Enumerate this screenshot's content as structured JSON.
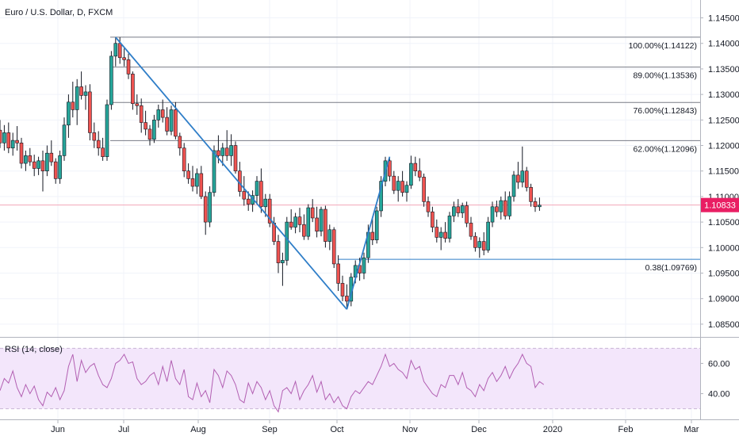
{
  "chart_data": [
    {
      "type": "candlestick",
      "title": "Euro / U.S. Dollar, D, FXCM",
      "x_labels": [
        "Jun",
        "Jul",
        "Aug",
        "Sep",
        "Oct",
        "Nov",
        "Dec",
        "2020",
        "Feb",
        "Mar"
      ],
      "y_ticks": [
        "1.14500",
        "1.14000",
        "1.13500",
        "1.13000",
        "1.12500",
        "1.12000",
        "1.11500",
        "1.11000",
        "1.10500",
        "1.10000",
        "1.09500",
        "1.09000",
        "1.08500"
      ],
      "ylim": [
        1.0825,
        1.1485
      ],
      "last_price": "1.10833",
      "colors": {
        "up": "#26a69a",
        "down": "#ef5350",
        "wick": "#131722",
        "trend": "#2f7ec8",
        "fib": "#787b86",
        "fib_low": "#2f7ec8",
        "price_line": "#f3a6b8",
        "price_tag": "#e91e63"
      },
      "candles": [
        [
          1.123,
          1.125,
          1.1195,
          1.1205
        ],
        [
          1.1205,
          1.124,
          1.119,
          1.1225
        ],
        [
          1.1225,
          1.1245,
          1.1185,
          1.1195
        ],
        [
          1.1195,
          1.1225,
          1.118,
          1.121
        ],
        [
          1.121,
          1.1238,
          1.119,
          1.1205
        ],
        [
          1.1205,
          1.1215,
          1.1155,
          1.1165
        ],
        [
          1.1165,
          1.119,
          1.115,
          1.118
        ],
        [
          1.118,
          1.1195,
          1.116,
          1.1168
        ],
        [
          1.1168,
          1.1182,
          1.114,
          1.1155
        ],
        [
          1.1155,
          1.1178,
          1.1142,
          1.117
        ],
        [
          1.117,
          1.119,
          1.111,
          1.115
        ],
        [
          1.115,
          1.12,
          1.114,
          1.1185
        ],
        [
          1.1185,
          1.121,
          1.116,
          1.1168
        ],
        [
          1.1168,
          1.1175,
          1.1125,
          1.1135
        ],
        [
          1.1135,
          1.119,
          1.1125,
          1.118
        ],
        [
          1.118,
          1.1255,
          1.117,
          1.124
        ],
        [
          1.124,
          1.13,
          1.1215,
          1.1285
        ],
        [
          1.1285,
          1.1325,
          1.1255,
          1.127
        ],
        [
          1.127,
          1.133,
          1.124,
          1.1315
        ],
        [
          1.1315,
          1.1345,
          1.129,
          1.1298
        ],
        [
          1.1298,
          1.1318,
          1.127,
          1.1305
        ],
        [
          1.1305,
          1.132,
          1.121,
          1.1225
        ],
        [
          1.1225,
          1.1245,
          1.1195,
          1.121
        ],
        [
          1.121,
          1.1228,
          1.118,
          1.1195
        ],
        [
          1.1195,
          1.1215,
          1.117,
          1.1178
        ],
        [
          1.1178,
          1.129,
          1.117,
          1.128
        ],
        [
          1.128,
          1.1385,
          1.127,
          1.1375
        ],
        [
          1.1375,
          1.1412,
          1.1355,
          1.14
        ],
        [
          1.14,
          1.1412,
          1.136,
          1.1372
        ],
        [
          1.1372,
          1.139,
          1.1355,
          1.1368
        ],
        [
          1.1368,
          1.138,
          1.133,
          1.134
        ],
        [
          1.134,
          1.1345,
          1.127,
          1.1282
        ],
        [
          1.1282,
          1.13,
          1.126,
          1.1278
        ],
        [
          1.1278,
          1.1292,
          1.1225,
          1.1245
        ],
        [
          1.1245,
          1.1268,
          1.122,
          1.1232
        ],
        [
          1.1232,
          1.124,
          1.12,
          1.1212
        ],
        [
          1.1212,
          1.126,
          1.1205,
          1.125
        ],
        [
          1.125,
          1.128,
          1.1235,
          1.127
        ],
        [
          1.127,
          1.129,
          1.1245,
          1.1255
        ],
        [
          1.1255,
          1.1275,
          1.122,
          1.1228
        ],
        [
          1.1228,
          1.1278,
          1.122,
          1.127
        ],
        [
          1.127,
          1.1285,
          1.1212,
          1.1218
        ],
        [
          1.1218,
          1.1225,
          1.118,
          1.1195
        ],
        [
          1.1195,
          1.1205,
          1.1138,
          1.115
        ],
        [
          1.115,
          1.1165,
          1.1125,
          1.1135
        ],
        [
          1.1135,
          1.116,
          1.111,
          1.112
        ],
        [
          1.112,
          1.1155,
          1.1105,
          1.1145
        ],
        [
          1.1145,
          1.116,
          1.1095,
          1.11
        ],
        [
          1.11,
          1.111,
          1.1025,
          1.105
        ],
        [
          1.105,
          1.112,
          1.104,
          1.1108
        ],
        [
          1.1108,
          1.12,
          1.11,
          1.119
        ],
        [
          1.119,
          1.122,
          1.1165,
          1.118
        ],
        [
          1.118,
          1.1205,
          1.116,
          1.1195
        ],
        [
          1.1195,
          1.123,
          1.117,
          1.118
        ],
        [
          1.118,
          1.1222,
          1.116,
          1.12
        ],
        [
          1.12,
          1.1208,
          1.1145,
          1.115
        ],
        [
          1.115,
          1.1168,
          1.11,
          1.111
        ],
        [
          1.111,
          1.114,
          1.1082,
          1.1095
        ],
        [
          1.1095,
          1.111,
          1.1072,
          1.1085
        ],
        [
          1.1085,
          1.1112,
          1.107,
          1.1102
        ],
        [
          1.1102,
          1.114,
          1.1085,
          1.113
        ],
        [
          1.113,
          1.1155,
          1.1068,
          1.108
        ],
        [
          1.108,
          1.1105,
          1.106,
          1.1095
        ],
        [
          1.1095,
          1.1105,
          1.104,
          1.1048
        ],
        [
          1.1048,
          1.106,
          1.1005,
          1.1012
        ],
        [
          1.1012,
          1.1025,
          1.095,
          1.097
        ],
        [
          1.097,
          1.099,
          1.0925,
          1.0975
        ],
        [
          1.0975,
          1.106,
          1.0965,
          1.105
        ],
        [
          1.105,
          1.1075,
          1.1035,
          1.104
        ],
        [
          1.104,
          1.1068,
          1.1028,
          1.106
        ],
        [
          1.106,
          1.1078,
          1.103,
          1.1045
        ],
        [
          1.1045,
          1.1065,
          1.1015,
          1.1022
        ],
        [
          1.1022,
          1.1085,
          1.1015,
          1.1078
        ],
        [
          1.1078,
          1.1095,
          1.105,
          1.1058
        ],
        [
          1.1058,
          1.108,
          1.102,
          1.1032
        ],
        [
          1.1032,
          1.108,
          1.1022,
          1.1075
        ],
        [
          1.1075,
          1.1082,
          1.1,
          1.1012
        ],
        [
          1.1012,
          1.1045,
          1.0995,
          1.1035
        ],
        [
          1.1035,
          1.104,
          1.096,
          1.0968
        ],
        [
          1.0968,
          1.0985,
          1.0915,
          1.093
        ],
        [
          1.093,
          1.0945,
          1.0895,
          1.0905
        ],
        [
          1.0905,
          1.0928,
          1.088,
          1.0895
        ],
        [
          1.0895,
          1.095,
          1.0885,
          1.0942
        ],
        [
          1.0942,
          1.0975,
          1.093,
          1.0965
        ],
        [
          1.0965,
          1.098,
          1.0935,
          1.095
        ],
        [
          1.095,
          1.099,
          1.0938,
          1.098
        ],
        [
          1.098,
          1.1045,
          1.097,
          1.103
        ],
        [
          1.103,
          1.106,
          1.1005,
          1.1015
        ],
        [
          1.1015,
          1.108,
          1.1008,
          1.1072
        ],
        [
          1.1072,
          1.114,
          1.106,
          1.113
        ],
        [
          1.113,
          1.1178,
          1.112,
          1.117
        ],
        [
          1.117,
          1.1175,
          1.113,
          1.114
        ],
        [
          1.114,
          1.115,
          1.1105,
          1.1112
        ],
        [
          1.1112,
          1.114,
          1.109,
          1.113
        ],
        [
          1.113,
          1.115,
          1.11,
          1.1108
        ],
        [
          1.1108,
          1.113,
          1.109,
          1.1122
        ],
        [
          1.1122,
          1.118,
          1.1115,
          1.1165
        ],
        [
          1.1165,
          1.1178,
          1.114,
          1.115
        ],
        [
          1.115,
          1.1175,
          1.113,
          1.1138
        ],
        [
          1.1138,
          1.1145,
          1.108,
          1.109
        ],
        [
          1.109,
          1.11,
          1.106,
          1.107
        ],
        [
          1.107,
          1.108,
          1.103,
          1.104
        ],
        [
          1.104,
          1.1055,
          1.101,
          1.102
        ],
        [
          1.102,
          1.104,
          1.0995,
          1.103
        ],
        [
          1.103,
          1.105,
          1.101,
          1.1018
        ],
        [
          1.1018,
          1.107,
          1.101,
          1.1062
        ],
        [
          1.1062,
          1.109,
          1.105,
          1.108
        ],
        [
          1.108,
          1.1095,
          1.106,
          1.1068
        ],
        [
          1.1068,
          1.1088,
          1.1058,
          1.1082
        ],
        [
          1.1082,
          1.109,
          1.104,
          1.1048
        ],
        [
          1.1048,
          1.106,
          1.1015,
          1.1022
        ],
        [
          1.1022,
          1.103,
          1.0992,
          1.1
        ],
        [
          1.1,
          1.102,
          1.098,
          1.1012
        ],
        [
          1.1012,
          1.103,
          1.0985,
          1.0995
        ],
        [
          1.0995,
          1.106,
          1.099,
          1.105
        ],
        [
          1.105,
          1.109,
          1.104,
          1.108
        ],
        [
          1.108,
          1.1092,
          1.106,
          1.107
        ],
        [
          1.107,
          1.11,
          1.1055,
          1.1092
        ],
        [
          1.1092,
          1.111,
          1.1055,
          1.1062
        ],
        [
          1.1062,
          1.111,
          1.1055,
          1.11
        ],
        [
          1.11,
          1.115,
          1.109,
          1.1142
        ],
        [
          1.1142,
          1.1168,
          1.1115,
          1.1128
        ],
        [
          1.1128,
          1.1198,
          1.1118,
          1.115
        ],
        [
          1.115,
          1.1158,
          1.111,
          1.1118
        ],
        [
          1.1118,
          1.1125,
          1.108,
          1.109
        ],
        [
          1.109,
          1.1098,
          1.107,
          1.108
        ],
        [
          1.108,
          1.1098,
          1.1072,
          1.1083
        ]
      ],
      "fib_levels": [
        {
          "label": "100.00%(1.14122)",
          "value": 1.14122
        },
        {
          "label": "89.00%(1.13536)",
          "value": 1.13536
        },
        {
          "label": "76.00%(1.12843)",
          "value": 1.12843
        },
        {
          "label": "62.00%(1.12096)",
          "value": 1.12096
        },
        {
          "label": "0.38(1.09769)",
          "value": 1.09769
        }
      ],
      "trend_points": [
        {
          "bar": 27,
          "price": 1.1412
        },
        {
          "bar": 81,
          "price": 1.0879
        },
        {
          "bar": 91,
          "price": 1.1178
        }
      ]
    },
    {
      "type": "line",
      "title": "RSI (14, close)",
      "y_ticks": [
        "60.00",
        "40.00"
      ],
      "ylim": [
        23,
        77
      ],
      "band": [
        30,
        70
      ],
      "colors": {
        "line": "#b25fb2",
        "band_fill": "#f3e6fb",
        "band_edge": "#c9b6d6"
      },
      "values": [
        42,
        50,
        47,
        55,
        44,
        38,
        46,
        40,
        45,
        36,
        32,
        41,
        38,
        44,
        36,
        42,
        58,
        66,
        48,
        62,
        54,
        58,
        60,
        52,
        46,
        44,
        50,
        60,
        62,
        66,
        60,
        61,
        50,
        46,
        48,
        52,
        54,
        46,
        58,
        48,
        62,
        50,
        46,
        56,
        38,
        36,
        47,
        38,
        42,
        34,
        56,
        52,
        44,
        55,
        52,
        46,
        36,
        34,
        47,
        40,
        48,
        44,
        36,
        42,
        32,
        28,
        42,
        44,
        40,
        48,
        36,
        42,
        46,
        52,
        41,
        48,
        36,
        40,
        34,
        38,
        32,
        30,
        38,
        42,
        40,
        44,
        48,
        46,
        52,
        58,
        66,
        58,
        60,
        56,
        54,
        50,
        62,
        56,
        58,
        48,
        44,
        40,
        38,
        46,
        44,
        52,
        52,
        46,
        54,
        44,
        42,
        38,
        46,
        42,
        50,
        54,
        48,
        52,
        58,
        50,
        56,
        60,
        66,
        60,
        58,
        44,
        48,
        46
      ]
    }
  ]
}
